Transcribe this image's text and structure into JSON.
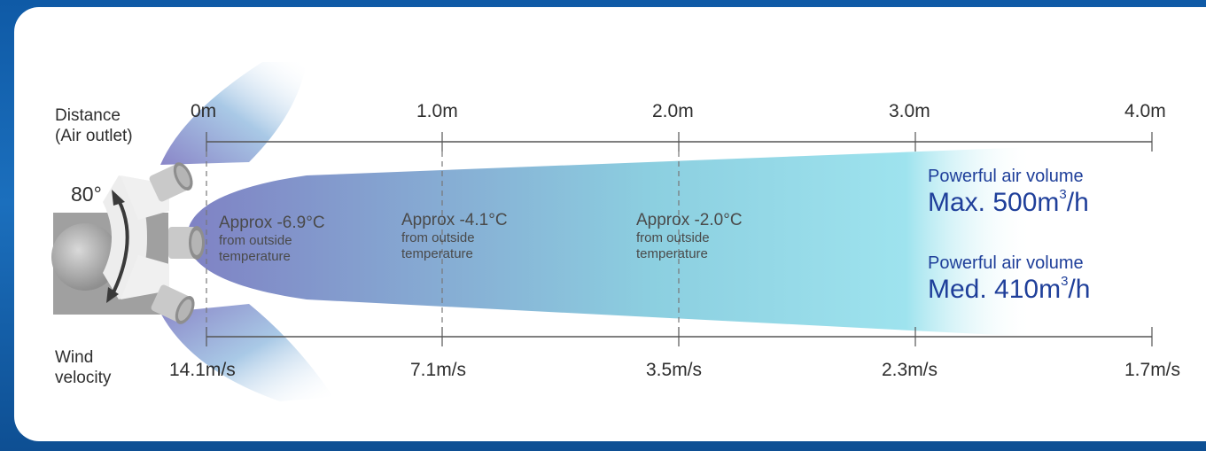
{
  "labels": {
    "distance": "Distance",
    "distance_sub": "(Air outlet)",
    "wind": "Wind",
    "wind_sub": "velocity",
    "angle": "80°"
  },
  "distance_ticks": [
    "0m",
    "1.0m",
    "2.0m",
    "3.0m",
    "4.0m"
  ],
  "velocity_ticks": [
    "14.1m/s",
    "7.1m/s",
    "3.5m/s",
    "2.3m/s",
    "1.7m/s"
  ],
  "temperatures": [
    {
      "value": "Approx -6.9°C",
      "line1": "from outside",
      "line2": "temperature"
    },
    {
      "value": "Approx -4.1°C",
      "line1": "from outside",
      "line2": "temperature"
    },
    {
      "value": "Approx -2.0°C",
      "line1": "from outside",
      "line2": "temperature"
    }
  ],
  "volumes": [
    {
      "title": "Powerful air volume",
      "mode": "Max. 500m",
      "exp": "3",
      "unit": "/h"
    },
    {
      "title": "Powerful air volume",
      "mode": "Med. 410m",
      "exp": "3",
      "unit": "/h"
    }
  ],
  "colors": {
    "background": "#1566b3",
    "card": "#ffffff",
    "beam_start": "#7f82c4",
    "beam_end": "#8fdde8",
    "volume_text": "#1f3f9a",
    "axis": "#555555"
  }
}
